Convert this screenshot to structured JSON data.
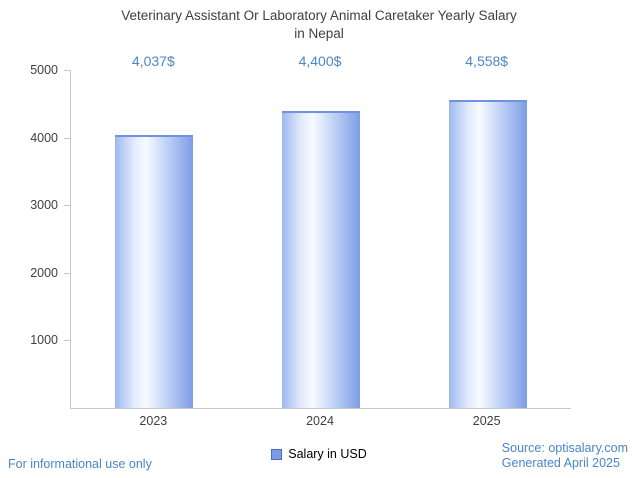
{
  "title_line1": "Veterinary Assistant Or Laboratory Animal Caretaker Yearly Salary",
  "title_line2": "in Nepal",
  "legend_label": "Salary in USD",
  "footer": {
    "left": "For informational use only",
    "source": "Source: optisalary.com",
    "generated": "Generated April 2025"
  },
  "colors": {
    "accent_text": "#4a86c8",
    "title_text": "#3f3f3f",
    "axis": "#c8c8c8",
    "bar_edge": "#7f9de7",
    "bar_cap": "#7291e0",
    "legend_swatch": "#7d9ce5",
    "legend_swatch_border": "#4a6fc0"
  },
  "chart_data": {
    "type": "bar",
    "title": "Veterinary Assistant Or Laboratory Animal Caretaker Yearly Salary in Nepal",
    "categories": [
      "2023",
      "2024",
      "2025"
    ],
    "series": [
      {
        "name": "Salary in USD",
        "values": [
          4037,
          4400,
          4558
        ]
      }
    ],
    "value_labels": [
      "4,037$",
      "4,400$",
      "4,558$"
    ],
    "xlabel": "",
    "ylabel": "",
    "ylim": [
      0,
      5000
    ],
    "yticks": [
      1000,
      2000,
      3000,
      4000,
      5000
    ],
    "grid": false,
    "legend_position": "bottom"
  }
}
